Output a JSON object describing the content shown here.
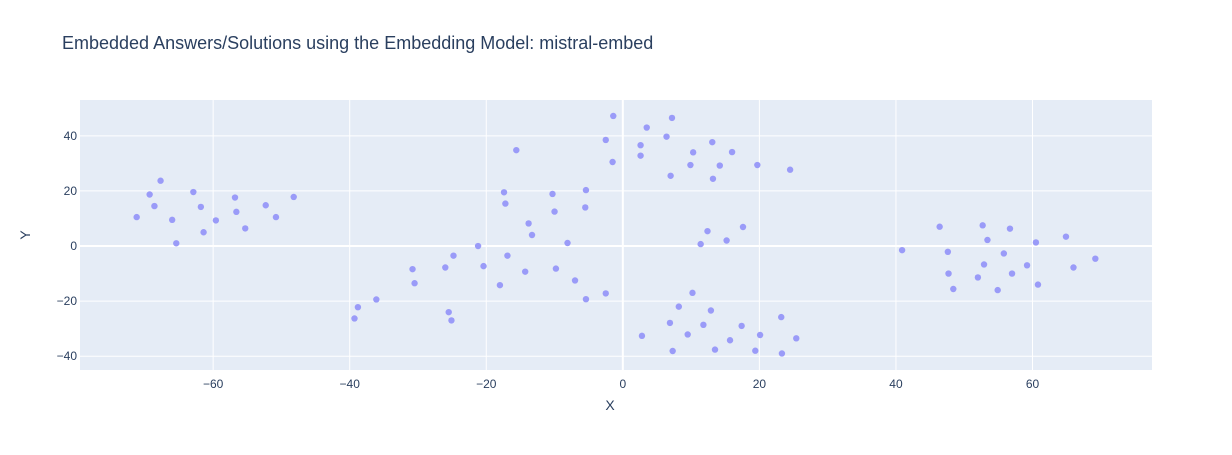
{
  "chart_data": {
    "type": "scatter",
    "title": "Embedded Answers/Solutions using the Embedding Model: mistral-embed",
    "xlabel": "X",
    "ylabel": "Y",
    "xlim": [
      -79.5,
      77.5
    ],
    "ylim": [
      -45,
      53
    ],
    "xticks": [
      -60,
      -40,
      -20,
      0,
      20,
      40,
      60
    ],
    "xtick_labels": [
      "−60",
      "−40",
      "−20",
      "0",
      "20",
      "40",
      "60"
    ],
    "yticks": [
      -40,
      -20,
      0,
      20,
      40
    ],
    "ytick_labels": [
      "−40",
      "−20",
      "0",
      "20",
      "40"
    ],
    "grid": true,
    "colors": {
      "plot_bg": "#e5ecf6",
      "grid": "#ffffff",
      "marker": "#9a9bf8",
      "text": "#2a3f5f"
    },
    "series": [
      {
        "x": [
          -71.2,
          -69.3,
          -68.6,
          -67.7,
          -66.0,
          -65.4,
          -62.9,
          -61.8,
          -61.4,
          -59.6,
          -56.8,
          -56.6,
          -55.3,
          -52.3,
          -50.8,
          -48.2,
          -39.3,
          -38.8,
          -36.1,
          -30.8,
          -30.5,
          -26.0,
          -25.5,
          -25.1,
          -24.8,
          -21.2,
          -20.4,
          -18.0,
          -17.4,
          -17.2,
          -16.9,
          -15.6,
          -14.3,
          -13.8,
          -13.3,
          -10.3,
          -10.0,
          -9.8,
          -8.1,
          -7.0,
          -5.4,
          -5.5,
          -5.4,
          -2.5,
          -2.5,
          -1.5,
          -1.4,
          2.6,
          2.6,
          2.8,
          3.5,
          6.4,
          6.9,
          7.0,
          7.2,
          7.3,
          8.2,
          9.5,
          9.9,
          10.2,
          10.3,
          11.4,
          11.8,
          12.4,
          12.9,
          13.1,
          13.2,
          13.5,
          14.2,
          15.2,
          15.7,
          16.0,
          17.4,
          17.6,
          19.4,
          19.7,
          20.1,
          23.2,
          23.3,
          24.5,
          25.4,
          40.9,
          46.4,
          47.6,
          47.7,
          48.4,
          52.0,
          52.7,
          52.9,
          53.4,
          54.9,
          55.8,
          56.7,
          57.0,
          59.2,
          60.5,
          60.8,
          64.9,
          66.0,
          69.2
        ],
        "y": [
          10.5,
          18.7,
          14.5,
          23.7,
          9.5,
          1.0,
          19.6,
          14.2,
          5.0,
          9.3,
          17.6,
          12.4,
          6.4,
          14.8,
          10.5,
          17.8,
          -26.3,
          -22.2,
          -19.4,
          -8.4,
          -13.5,
          -7.8,
          -24.0,
          -27.0,
          -3.5,
          0.0,
          -7.3,
          -14.2,
          19.5,
          15.4,
          -3.5,
          34.8,
          -9.3,
          8.2,
          4.0,
          18.9,
          12.5,
          -8.2,
          1.1,
          -12.5,
          20.3,
          14.0,
          -19.3,
          -17.2,
          38.5,
          30.5,
          47.2,
          36.6,
          32.8,
          -32.6,
          43.0,
          39.7,
          -27.9,
          25.5,
          46.5,
          -38.1,
          -22.0,
          -32.1,
          29.4,
          -17.0,
          34.0,
          0.7,
          -28.6,
          5.4,
          -23.4,
          37.7,
          24.4,
          -37.6,
          29.2,
          2.0,
          -34.2,
          34.1,
          -29.0,
          6.9,
          -38.0,
          29.4,
          -32.3,
          -25.8,
          -39.0,
          27.7,
          -33.5,
          -1.5,
          7.0,
          -2.1,
          -10.0,
          -15.6,
          -11.4,
          7.5,
          -6.7,
          2.2,
          -16.0,
          -2.7,
          6.3,
          -10.0,
          -7.0,
          1.3,
          -14.0,
          3.4,
          -7.8,
          -4.6
        ]
      }
    ]
  }
}
